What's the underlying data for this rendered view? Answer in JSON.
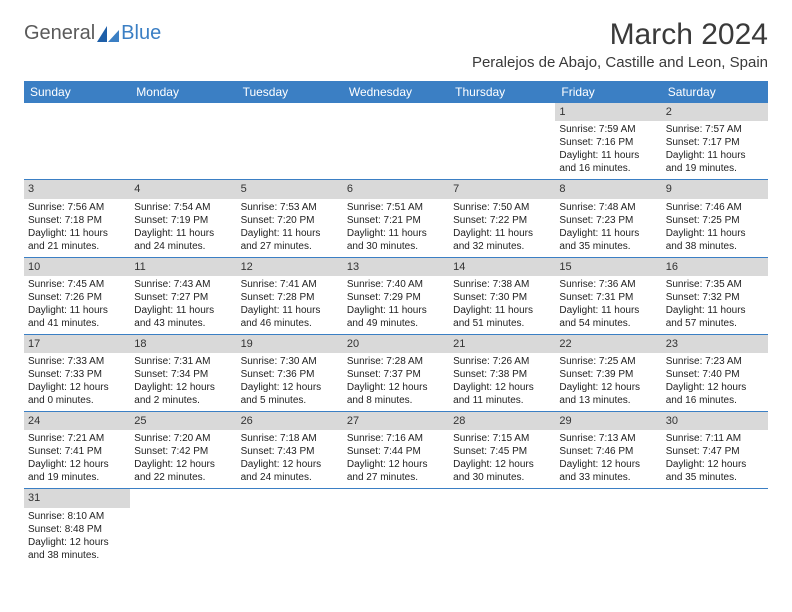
{
  "logo": {
    "part1": "General",
    "part2": "Blue"
  },
  "title": "March 2024",
  "location": "Peralejos de Abajo, Castille and Leon, Spain",
  "colors": {
    "header_bg": "#3b7fc4",
    "header_text": "#ffffff",
    "daynum_bg": "#d9d9d9",
    "row_border": "#3b7fc4",
    "logo_gray": "#5a5a5a",
    "logo_blue": "#3b7fc4"
  },
  "weekdays": [
    "Sunday",
    "Monday",
    "Tuesday",
    "Wednesday",
    "Thursday",
    "Friday",
    "Saturday"
  ],
  "weeks": [
    [
      {
        "empty": true
      },
      {
        "empty": true
      },
      {
        "empty": true
      },
      {
        "empty": true
      },
      {
        "empty": true
      },
      {
        "num": "1",
        "sunrise": "Sunrise: 7:59 AM",
        "sunset": "Sunset: 7:16 PM",
        "day1": "Daylight: 11 hours",
        "day2": "and 16 minutes."
      },
      {
        "num": "2",
        "sunrise": "Sunrise: 7:57 AM",
        "sunset": "Sunset: 7:17 PM",
        "day1": "Daylight: 11 hours",
        "day2": "and 19 minutes."
      }
    ],
    [
      {
        "num": "3",
        "sunrise": "Sunrise: 7:56 AM",
        "sunset": "Sunset: 7:18 PM",
        "day1": "Daylight: 11 hours",
        "day2": "and 21 minutes."
      },
      {
        "num": "4",
        "sunrise": "Sunrise: 7:54 AM",
        "sunset": "Sunset: 7:19 PM",
        "day1": "Daylight: 11 hours",
        "day2": "and 24 minutes."
      },
      {
        "num": "5",
        "sunrise": "Sunrise: 7:53 AM",
        "sunset": "Sunset: 7:20 PM",
        "day1": "Daylight: 11 hours",
        "day2": "and 27 minutes."
      },
      {
        "num": "6",
        "sunrise": "Sunrise: 7:51 AM",
        "sunset": "Sunset: 7:21 PM",
        "day1": "Daylight: 11 hours",
        "day2": "and 30 minutes."
      },
      {
        "num": "7",
        "sunrise": "Sunrise: 7:50 AM",
        "sunset": "Sunset: 7:22 PM",
        "day1": "Daylight: 11 hours",
        "day2": "and 32 minutes."
      },
      {
        "num": "8",
        "sunrise": "Sunrise: 7:48 AM",
        "sunset": "Sunset: 7:23 PM",
        "day1": "Daylight: 11 hours",
        "day2": "and 35 minutes."
      },
      {
        "num": "9",
        "sunrise": "Sunrise: 7:46 AM",
        "sunset": "Sunset: 7:25 PM",
        "day1": "Daylight: 11 hours",
        "day2": "and 38 minutes."
      }
    ],
    [
      {
        "num": "10",
        "sunrise": "Sunrise: 7:45 AM",
        "sunset": "Sunset: 7:26 PM",
        "day1": "Daylight: 11 hours",
        "day2": "and 41 minutes."
      },
      {
        "num": "11",
        "sunrise": "Sunrise: 7:43 AM",
        "sunset": "Sunset: 7:27 PM",
        "day1": "Daylight: 11 hours",
        "day2": "and 43 minutes."
      },
      {
        "num": "12",
        "sunrise": "Sunrise: 7:41 AM",
        "sunset": "Sunset: 7:28 PM",
        "day1": "Daylight: 11 hours",
        "day2": "and 46 minutes."
      },
      {
        "num": "13",
        "sunrise": "Sunrise: 7:40 AM",
        "sunset": "Sunset: 7:29 PM",
        "day1": "Daylight: 11 hours",
        "day2": "and 49 minutes."
      },
      {
        "num": "14",
        "sunrise": "Sunrise: 7:38 AM",
        "sunset": "Sunset: 7:30 PM",
        "day1": "Daylight: 11 hours",
        "day2": "and 51 minutes."
      },
      {
        "num": "15",
        "sunrise": "Sunrise: 7:36 AM",
        "sunset": "Sunset: 7:31 PM",
        "day1": "Daylight: 11 hours",
        "day2": "and 54 minutes."
      },
      {
        "num": "16",
        "sunrise": "Sunrise: 7:35 AM",
        "sunset": "Sunset: 7:32 PM",
        "day1": "Daylight: 11 hours",
        "day2": "and 57 minutes."
      }
    ],
    [
      {
        "num": "17",
        "sunrise": "Sunrise: 7:33 AM",
        "sunset": "Sunset: 7:33 PM",
        "day1": "Daylight: 12 hours",
        "day2": "and 0 minutes."
      },
      {
        "num": "18",
        "sunrise": "Sunrise: 7:31 AM",
        "sunset": "Sunset: 7:34 PM",
        "day1": "Daylight: 12 hours",
        "day2": "and 2 minutes."
      },
      {
        "num": "19",
        "sunrise": "Sunrise: 7:30 AM",
        "sunset": "Sunset: 7:36 PM",
        "day1": "Daylight: 12 hours",
        "day2": "and 5 minutes."
      },
      {
        "num": "20",
        "sunrise": "Sunrise: 7:28 AM",
        "sunset": "Sunset: 7:37 PM",
        "day1": "Daylight: 12 hours",
        "day2": "and 8 minutes."
      },
      {
        "num": "21",
        "sunrise": "Sunrise: 7:26 AM",
        "sunset": "Sunset: 7:38 PM",
        "day1": "Daylight: 12 hours",
        "day2": "and 11 minutes."
      },
      {
        "num": "22",
        "sunrise": "Sunrise: 7:25 AM",
        "sunset": "Sunset: 7:39 PM",
        "day1": "Daylight: 12 hours",
        "day2": "and 13 minutes."
      },
      {
        "num": "23",
        "sunrise": "Sunrise: 7:23 AM",
        "sunset": "Sunset: 7:40 PM",
        "day1": "Daylight: 12 hours",
        "day2": "and 16 minutes."
      }
    ],
    [
      {
        "num": "24",
        "sunrise": "Sunrise: 7:21 AM",
        "sunset": "Sunset: 7:41 PM",
        "day1": "Daylight: 12 hours",
        "day2": "and 19 minutes."
      },
      {
        "num": "25",
        "sunrise": "Sunrise: 7:20 AM",
        "sunset": "Sunset: 7:42 PM",
        "day1": "Daylight: 12 hours",
        "day2": "and 22 minutes."
      },
      {
        "num": "26",
        "sunrise": "Sunrise: 7:18 AM",
        "sunset": "Sunset: 7:43 PM",
        "day1": "Daylight: 12 hours",
        "day2": "and 24 minutes."
      },
      {
        "num": "27",
        "sunrise": "Sunrise: 7:16 AM",
        "sunset": "Sunset: 7:44 PM",
        "day1": "Daylight: 12 hours",
        "day2": "and 27 minutes."
      },
      {
        "num": "28",
        "sunrise": "Sunrise: 7:15 AM",
        "sunset": "Sunset: 7:45 PM",
        "day1": "Daylight: 12 hours",
        "day2": "and 30 minutes."
      },
      {
        "num": "29",
        "sunrise": "Sunrise: 7:13 AM",
        "sunset": "Sunset: 7:46 PM",
        "day1": "Daylight: 12 hours",
        "day2": "and 33 minutes."
      },
      {
        "num": "30",
        "sunrise": "Sunrise: 7:11 AM",
        "sunset": "Sunset: 7:47 PM",
        "day1": "Daylight: 12 hours",
        "day2": "and 35 minutes."
      }
    ],
    [
      {
        "num": "31",
        "sunrise": "Sunrise: 8:10 AM",
        "sunset": "Sunset: 8:48 PM",
        "day1": "Daylight: 12 hours",
        "day2": "and 38 minutes."
      },
      {
        "empty": true
      },
      {
        "empty": true
      },
      {
        "empty": true
      },
      {
        "empty": true
      },
      {
        "empty": true
      },
      {
        "empty": true
      }
    ]
  ]
}
